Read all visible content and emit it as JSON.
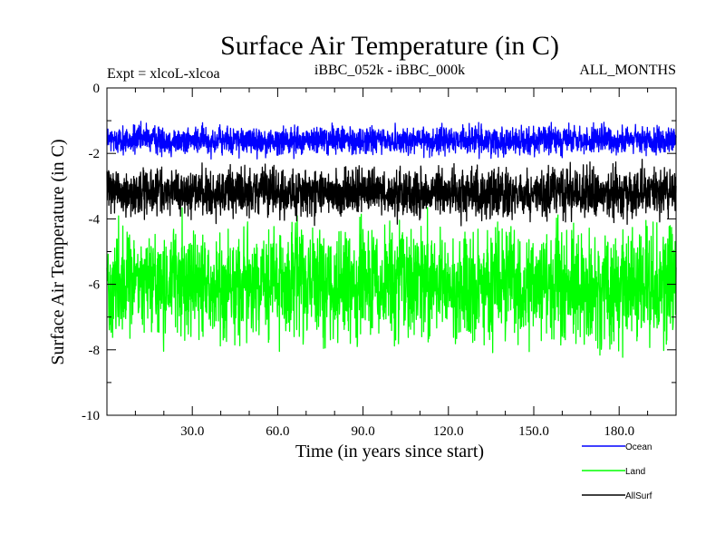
{
  "chart_data": {
    "type": "line",
    "title": "Surface Air Temperature (in C)",
    "subtitle_left": "Expt = xlcoL-xlcoa",
    "subtitle_center": "iBBC_052k - iBBC_000k",
    "subtitle_right": "ALL_MONTHS",
    "xlabel": "Time (in years since start)",
    "ylabel": "Surface Air Temperature (in C)",
    "xlim": [
      0,
      200
    ],
    "ylim": [
      -10,
      0
    ],
    "x_ticks": [
      30,
      60,
      90,
      120,
      150,
      180
    ],
    "x_tick_labels": [
      "30.0",
      "60.0",
      "90.0",
      "120.0",
      "150.0",
      "180.0"
    ],
    "y_ticks": [
      0,
      -2,
      -4,
      -6,
      -8,
      -10
    ],
    "y_tick_labels": [
      "0",
      "-2",
      "-4",
      "-6",
      "-8",
      "-10"
    ],
    "grid": false,
    "legend_position": "bottom-right, outside plot",
    "series": [
      {
        "name": "Ocean",
        "color": "#0000ff",
        "mean": -1.6,
        "range": [
          -2.2,
          -0.9
        ],
        "amplitude": 0.55
      },
      {
        "name": "Land",
        "color": "#00ff00",
        "mean": -6.0,
        "range": [
          -8.4,
          -3.2
        ],
        "amplitude": 2.2
      },
      {
        "name": "AllSurf",
        "color": "#000000",
        "mean": -3.2,
        "range": [
          -4.3,
          -2.0
        ],
        "amplitude": 0.95
      }
    ],
    "n_points": 2400
  }
}
